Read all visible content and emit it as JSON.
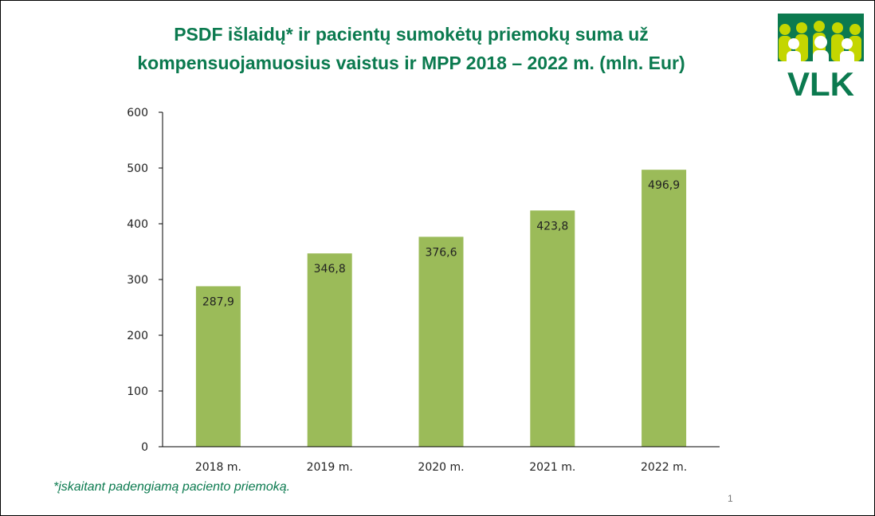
{
  "title": {
    "line1": "PSDF išlaidų* ir pacientų sumokėtų priemokų suma už",
    "line2": "kompensuojamuosius vaistus ir MPP 2018 – 2022 m. (mln. Eur)"
  },
  "logo": {
    "text": "VLK",
    "icon": "people-logo-icon",
    "colors": {
      "green": "#0b7a4f",
      "lime": "#c4d600"
    }
  },
  "chart_data": {
    "type": "bar",
    "categories": [
      "2018 m.",
      "2019 m.",
      "2020 m.",
      "2021 m.",
      "2022 m."
    ],
    "values": [
      287.9,
      346.8,
      376.6,
      423.8,
      496.9
    ],
    "data_labels": [
      "287,9",
      "346,8",
      "376,6",
      "423,8",
      "496,9"
    ],
    "ylim": [
      0,
      600
    ],
    "yticks": [
      0,
      100,
      200,
      300,
      400,
      500,
      600
    ],
    "grid": false,
    "bar_color": "#9bbb59",
    "title": "",
    "xlabel": "",
    "ylabel": ""
  },
  "footnote": "*įskaitant padengiamą paciento priemoką.",
  "page_number": "1"
}
